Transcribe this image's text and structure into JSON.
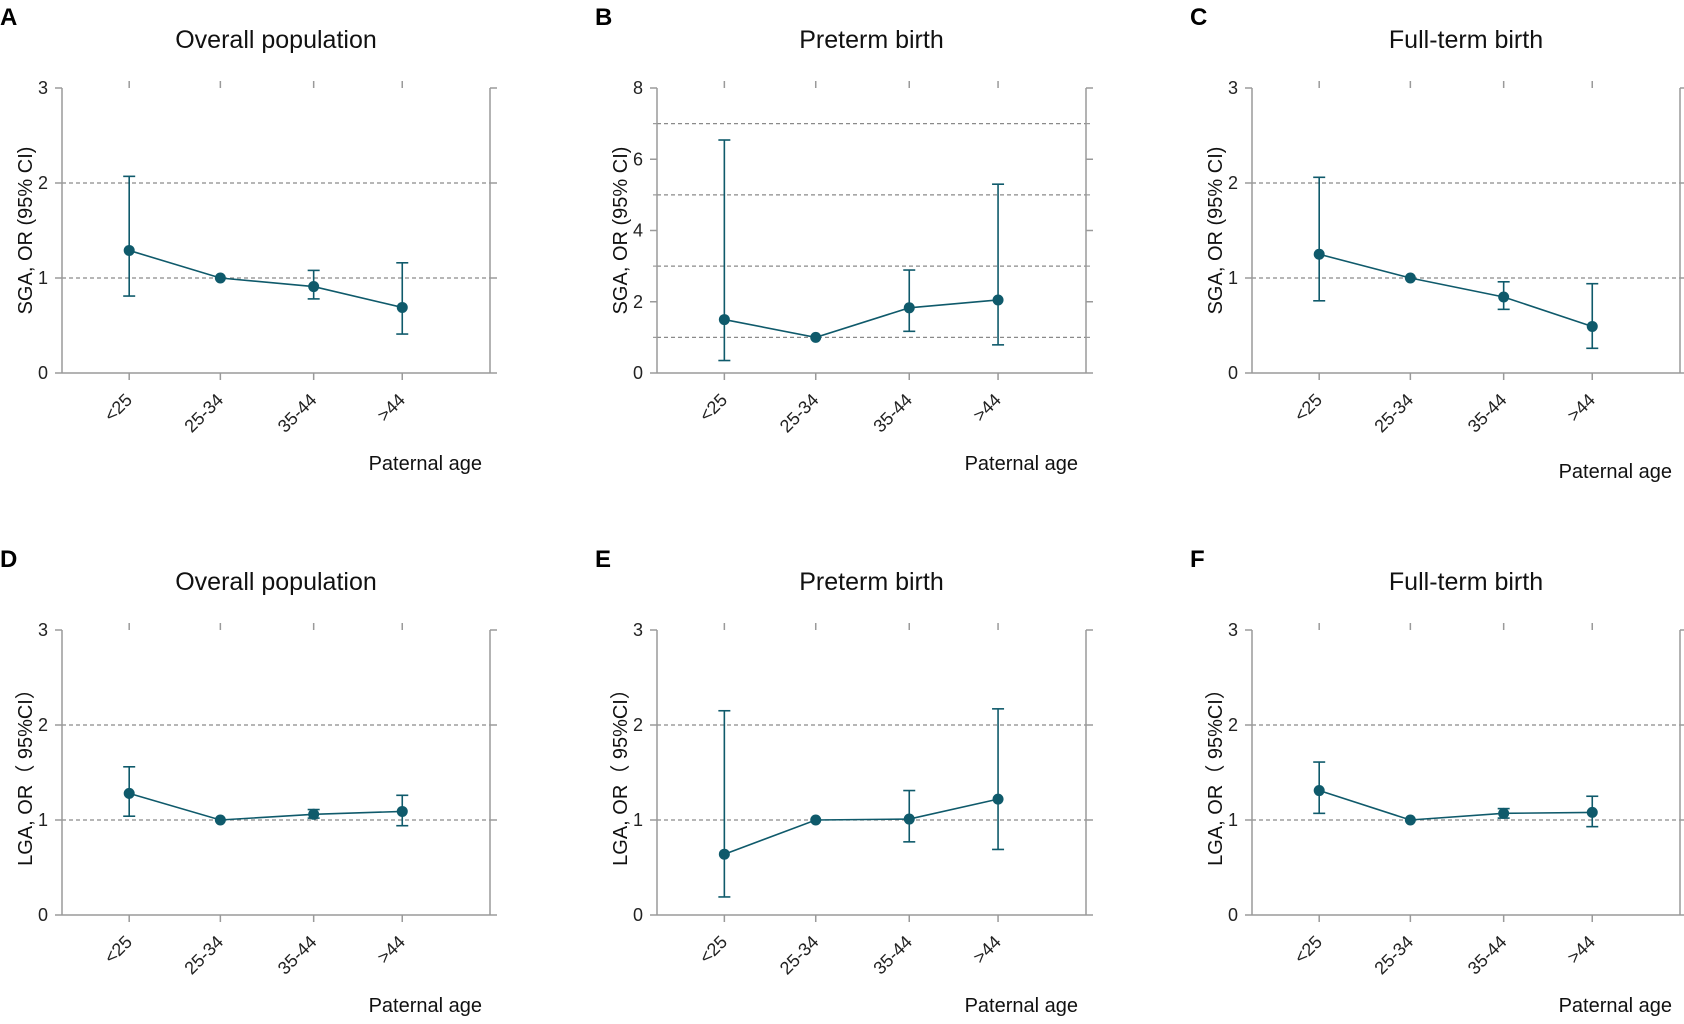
{
  "colors": {
    "series": "#0f5a6b",
    "axis": "#9a9a9a",
    "ref_line": "#8a8a8a",
    "text": "#111111"
  },
  "chart_data": [
    {
      "panel": "A",
      "type": "line",
      "title": "Overall population",
      "ylabel": "SGA, OR (95% CI)",
      "xlabel": "Paternal age",
      "categories": [
        "<25",
        "25-34",
        "35-44",
        ">44"
      ],
      "ylim": [
        0,
        3
      ],
      "yticks": [
        "0",
        "1",
        "2",
        "3"
      ],
      "ref_lines": [
        1,
        2
      ],
      "series": [
        {
          "name": "OR",
          "values": [
            1.29,
            1.0,
            0.91,
            0.69
          ],
          "ci_low": [
            0.81,
            1.0,
            0.78,
            0.41
          ],
          "ci_high": [
            2.07,
            1.0,
            1.08,
            1.16
          ]
        }
      ]
    },
    {
      "panel": "B",
      "type": "line",
      "title": "Preterm birth",
      "ylabel": "SGA, OR (95% CI)",
      "xlabel": "Paternal age",
      "categories": [
        "<25",
        "25-34",
        "35-44",
        ">44"
      ],
      "ylim": [
        0,
        8
      ],
      "yticks": [
        "0",
        "2",
        "4",
        "6",
        "8"
      ],
      "ref_lines": [
        1,
        3,
        5,
        7
      ],
      "series": [
        {
          "name": "OR",
          "values": [
            1.5,
            1.0,
            1.83,
            2.05
          ],
          "ci_low": [
            0.35,
            1.0,
            1.17,
            0.79
          ],
          "ci_high": [
            6.54,
            1.0,
            2.89,
            5.3
          ]
        }
      ]
    },
    {
      "panel": "C",
      "type": "line",
      "title": "Full-term birth",
      "ylabel": "SGA, OR (95% CI)",
      "xlabel": "Paternal age",
      "categories": [
        "<25",
        "25-34",
        "35-44",
        ">44"
      ],
      "ylim": [
        0,
        3
      ],
      "yticks": [
        "0",
        "1",
        "2",
        "3"
      ],
      "ref_lines": [
        1,
        2
      ],
      "series": [
        {
          "name": "OR",
          "values": [
            1.25,
            1.0,
            0.8,
            0.49
          ],
          "ci_low": [
            0.76,
            1.0,
            0.67,
            0.26
          ],
          "ci_high": [
            2.06,
            1.0,
            0.96,
            0.94
          ]
        }
      ]
    },
    {
      "panel": "D",
      "type": "line",
      "title": "Overall population",
      "ylabel": "LGA,  OR（ 95%CI）",
      "xlabel": "Paternal age",
      "categories": [
        "<25",
        "25-34",
        "35-44",
        ">44"
      ],
      "ylim": [
        0,
        3
      ],
      "yticks": [
        "0",
        "1",
        "2",
        "3"
      ],
      "ref_lines": [
        1,
        2
      ],
      "series": [
        {
          "name": "OR",
          "values": [
            1.28,
            1.0,
            1.06,
            1.09
          ],
          "ci_low": [
            1.04,
            1.0,
            1.02,
            0.94
          ],
          "ci_high": [
            1.56,
            1.0,
            1.11,
            1.26
          ]
        }
      ]
    },
    {
      "panel": "E",
      "type": "line",
      "title": "Preterm birth",
      "ylabel": "LGA,  OR（ 95%CI）",
      "xlabel": "Paternal age",
      "categories": [
        "<25",
        "25-34",
        "35-44",
        ">44"
      ],
      "ylim": [
        0,
        3
      ],
      "yticks": [
        "0",
        "1",
        "2",
        "3"
      ],
      "ref_lines": [
        1,
        2
      ],
      "series": [
        {
          "name": "OR",
          "values": [
            0.64,
            1.0,
            1.01,
            1.22
          ],
          "ci_low": [
            0.19,
            1.0,
            0.77,
            0.69
          ],
          "ci_high": [
            2.15,
            1.0,
            1.31,
            2.17
          ]
        }
      ]
    },
    {
      "panel": "F",
      "type": "line",
      "title": "Full-term birth",
      "ylabel": "LGA,  OR（ 95%CI）",
      "xlabel": "Paternal age",
      "categories": [
        "<25",
        "25-34",
        "35-44",
        ">44"
      ],
      "ylim": [
        0,
        3
      ],
      "yticks": [
        "0",
        "1",
        "2",
        "3"
      ],
      "ref_lines": [
        1,
        2
      ],
      "series": [
        {
          "name": "OR",
          "values": [
            1.31,
            1.0,
            1.07,
            1.08
          ],
          "ci_low": [
            1.07,
            1.0,
            1.02,
            0.93
          ],
          "ci_high": [
            1.61,
            1.0,
            1.12,
            1.25
          ]
        }
      ]
    }
  ]
}
